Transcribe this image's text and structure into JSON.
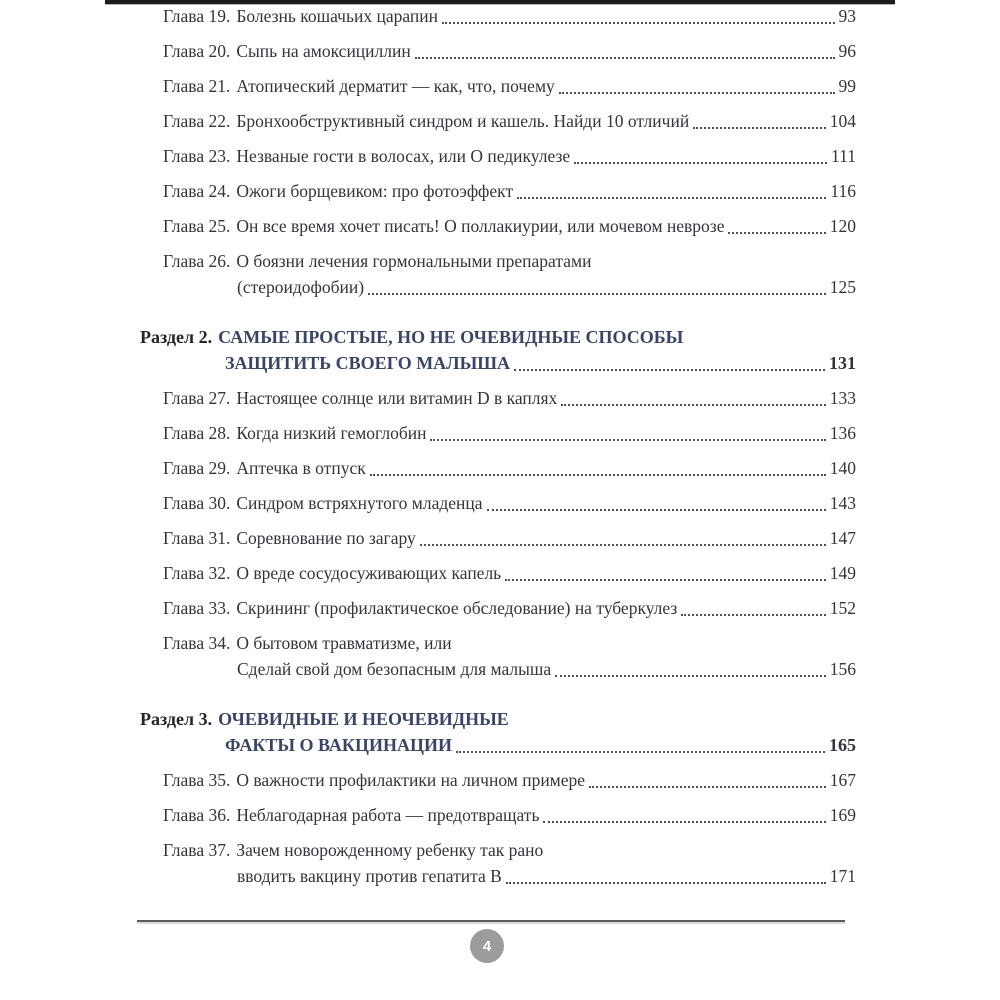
{
  "document": {
    "language": "ru",
    "kind": "book-table-of-contents-page"
  },
  "colors": {
    "text": "#32353c",
    "section_title": "#3a4566",
    "section_label": "#23252a",
    "leader_dots": "#4f4f4f",
    "footer_rule": "#5c5c5c",
    "top_bar": "#1c1c1c",
    "badge_background": "#9c9c9c",
    "badge_text": "#ffffff"
  },
  "toc": {
    "entries": [
      {
        "kind": "chapter",
        "label": "Глава 19.",
        "title": "Болезнь кошачьих царапин",
        "page": "93"
      },
      {
        "kind": "chapter",
        "label": "Глава 20.",
        "title": "Сыпь на амоксициллин",
        "page": "96"
      },
      {
        "kind": "chapter",
        "label": "Глава 21.",
        "title": "Атопический дерматит — как, что, почему",
        "page": "99"
      },
      {
        "kind": "chapter",
        "label": "Глава 22.",
        "title": "Бронхообструктивный синдром и кашель. Найди 10 отличий",
        "page": "104"
      },
      {
        "kind": "chapter",
        "label": "Глава 23.",
        "title": "Незваные гости в волосах, или О педикулезе",
        "page": "111"
      },
      {
        "kind": "chapter",
        "label": "Глава 24.",
        "title": "Ожоги борщевиком: про фотоэффект",
        "page": "116"
      },
      {
        "kind": "chapter",
        "label": "Глава 25.",
        "title": "Он все время хочет писать! О поллакиурии, или мочевом неврозе",
        "page": "120"
      },
      {
        "kind": "chapter",
        "label": "Глава 26.",
        "title": "О боязни лечения гормональными препаратами",
        "title2": "(стероидофобии)",
        "page": "125"
      },
      {
        "kind": "section",
        "label": "Раздел 2.",
        "title": "САМЫЕ ПРОСТЫЕ, НО НЕ ОЧЕВИДНЫЕ СПОСОБЫ",
        "title2": "ЗАЩИТИТЬ СВОЕГО МАЛЫША",
        "page": "131"
      },
      {
        "kind": "chapter",
        "label": "Глава 27.",
        "title": "Настоящее солнце или витамин D в каплях",
        "page": "133"
      },
      {
        "kind": "chapter",
        "label": "Глава 28.",
        "title": "Когда низкий гемоглобин",
        "page": "136"
      },
      {
        "kind": "chapter",
        "label": "Глава 29.",
        "title": "Аптечка в отпуск",
        "page": "140"
      },
      {
        "kind": "chapter",
        "label": "Глава 30.",
        "title": "Синдром встряхнутого младенца",
        "page": "143"
      },
      {
        "kind": "chapter",
        "label": "Глава 31.",
        "title": "Соревнование по загару",
        "page": "147"
      },
      {
        "kind": "chapter",
        "label": "Глава 32.",
        "title": "О вреде сосудосуживающих капель",
        "page": "149"
      },
      {
        "kind": "chapter",
        "label": "Глава 33.",
        "title": "Скрининг (профилактическое обследование) на туберкулез",
        "page": "152"
      },
      {
        "kind": "chapter",
        "label": "Глава 34.",
        "title": "О бытовом травматизме, или",
        "title2": "Сделай свой дом безопасным для малыша",
        "page": "156"
      },
      {
        "kind": "section",
        "label": "Раздел 3.",
        "title": "ОЧЕВИДНЫЕ И НЕОЧЕВИДНЫЕ",
        "title2": "ФАКТЫ О ВАКЦИНАЦИИ",
        "page": "165"
      },
      {
        "kind": "chapter",
        "label": "Глава 35.",
        "title": "О важности профилактики на личном примере",
        "page": "167"
      },
      {
        "kind": "chapter",
        "label": "Глава 36.",
        "title": "Неблагодарная работа — предотвращать",
        "page": "169"
      },
      {
        "kind": "chapter",
        "label": "Глава 37.",
        "title": "Зачем новорожденному ребенку так рано",
        "title2": "вводить вакцину против гепатита В",
        "page": "171"
      }
    ]
  },
  "footer": {
    "page_number": "4"
  }
}
